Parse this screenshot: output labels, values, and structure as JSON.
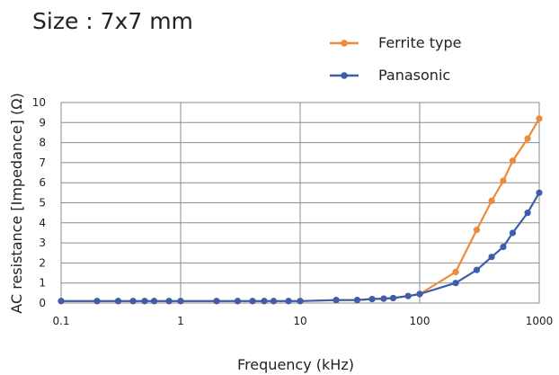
{
  "chart_data": {
    "type": "line",
    "title": "Size : 7x7 mm",
    "xlabel": "Frequency (kHz)",
    "ylabel": "AC resistance [Impedance] (Ω)",
    "x_scale": "log",
    "xlim": [
      0.1,
      1000
    ],
    "ylim": [
      0,
      10
    ],
    "x_ticks": [
      "0.1",
      "1",
      "10",
      "100",
      "1000"
    ],
    "y_ticks": [
      "0",
      "1",
      "2",
      "3",
      "4",
      "5",
      "6",
      "7",
      "8",
      "9",
      "10"
    ],
    "grid": true,
    "legend_position": "top-right",
    "series": [
      {
        "name": "Ferrite type",
        "color": "#ED8B3A",
        "x": [
          0.1,
          0.2,
          0.3,
          0.4,
          0.5,
          0.6,
          0.8,
          1,
          2,
          3,
          4,
          5,
          6,
          8,
          10,
          20,
          30,
          40,
          50,
          60,
          80,
          100,
          200,
          300,
          400,
          500,
          600,
          800,
          1000
        ],
        "values": [
          0.1,
          0.1,
          0.1,
          0.1,
          0.1,
          0.1,
          0.1,
          0.1,
          0.1,
          0.1,
          0.1,
          0.1,
          0.1,
          0.1,
          0.1,
          0.15,
          0.15,
          0.2,
          0.22,
          0.25,
          0.35,
          0.45,
          1.55,
          3.65,
          5.1,
          6.1,
          7.1,
          8.2,
          9.2
        ]
      },
      {
        "name": "Panasonic",
        "color": "#3E5DAB",
        "x": [
          0.1,
          0.2,
          0.3,
          0.4,
          0.5,
          0.6,
          0.8,
          1,
          2,
          3,
          4,
          5,
          6,
          8,
          10,
          20,
          30,
          40,
          50,
          60,
          80,
          100,
          200,
          300,
          400,
          500,
          600,
          800,
          1000
        ],
        "values": [
          0.1,
          0.1,
          0.1,
          0.1,
          0.1,
          0.1,
          0.1,
          0.1,
          0.1,
          0.1,
          0.1,
          0.1,
          0.1,
          0.1,
          0.1,
          0.15,
          0.15,
          0.2,
          0.22,
          0.25,
          0.35,
          0.45,
          1.0,
          1.65,
          2.3,
          2.8,
          3.5,
          4.5,
          5.5
        ]
      }
    ]
  }
}
